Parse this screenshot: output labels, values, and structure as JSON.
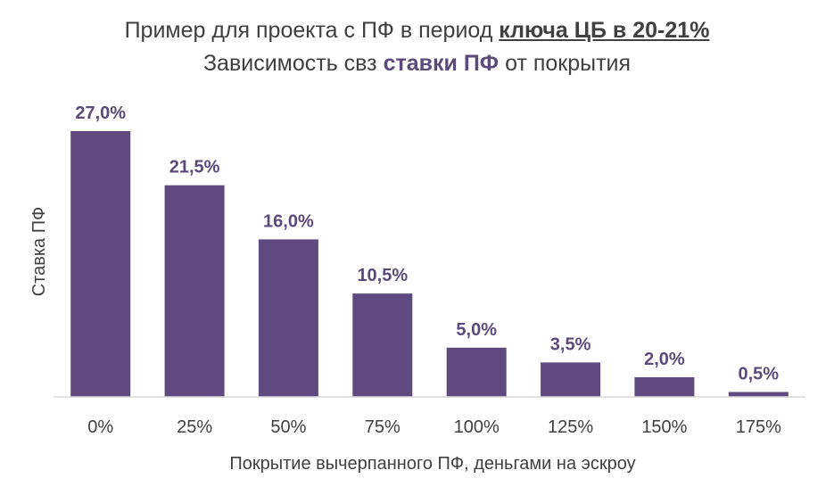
{
  "title": {
    "line1_prefix": "Пример для проекта  с ПФ в период ",
    "line1_highlight": "ключа ЦБ в 20-21%",
    "line2_prefix": "Зависимость свз ",
    "line2_highlight": "ставки ПФ",
    "line2_suffix": " от покрытия"
  },
  "colors": {
    "bar": "#5e4a7e",
    "value_label": "#5b4a7b",
    "text": "#404040",
    "axis_line": "#d9d9d9"
  },
  "chart_data": {
    "type": "bar",
    "categories": [
      "0%",
      "25%",
      "50%",
      "75%",
      "100%",
      "125%",
      "150%",
      "175%"
    ],
    "values": [
      27.0,
      21.5,
      16.0,
      10.5,
      5.0,
      3.5,
      2.0,
      0.5
    ],
    "value_labels": [
      "27,0%",
      "21,5%",
      "16,0%",
      "10,5%",
      "5,0%",
      "3,5%",
      "2,0%",
      "0,5%"
    ],
    "xlabel": "Покрытие вычерпанного ПФ, деньгами на эскроу",
    "ylabel": "Ставка ПФ",
    "ylim": [
      0,
      27
    ],
    "grid": false,
    "legend": "none"
  }
}
